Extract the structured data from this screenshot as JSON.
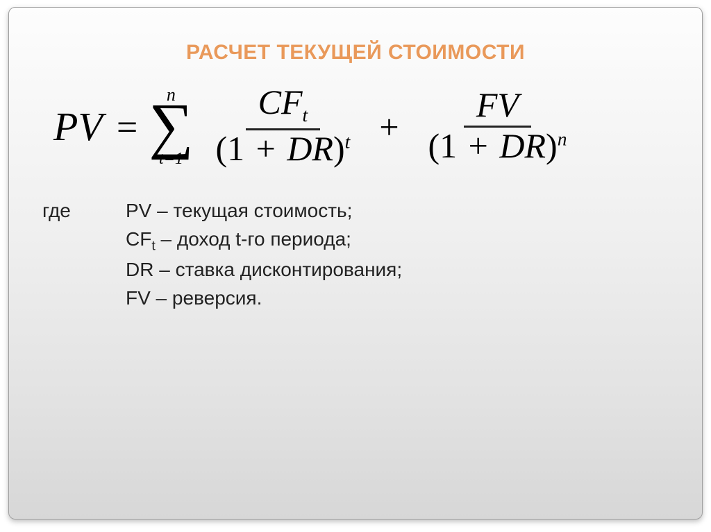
{
  "colors": {
    "title": "#e9995a",
    "text": "#222222",
    "border": "#9e9e9e",
    "bg_top": "#fdfdfd",
    "bg_bottom": "#d7d7d7"
  },
  "title": "РАСЧЕТ ТЕКУЩЕЙ СТОИМОСТИ",
  "formula": {
    "lhs": "PV",
    "eq": "=",
    "sum_upper": "n",
    "sum_symbol": "∑",
    "sum_lower": "t=1",
    "frac1_num_base": "CF",
    "frac1_num_sub": "t",
    "frac1_den_open": "(1",
    "frac1_den_plus": "+",
    "frac1_den_var": "DR",
    "frac1_den_close": ")",
    "frac1_den_exp": "t",
    "plus": "+",
    "frac2_num": "FV",
    "frac2_den_open": "(1",
    "frac2_den_plus": "+",
    "frac2_den_var": "DR",
    "frac2_den_close": ")",
    "frac2_den_exp": "n"
  },
  "legend": {
    "where_label": "где",
    "lines": {
      "l1": "PV – текущая стоимость;",
      "l2_sym": "CF",
      "l2_sub": "t",
      "l2_rest": " – доход t-го периода;",
      "l3": "DR – ставка дисконтирования;",
      "l4": "FV – реверсия."
    }
  }
}
